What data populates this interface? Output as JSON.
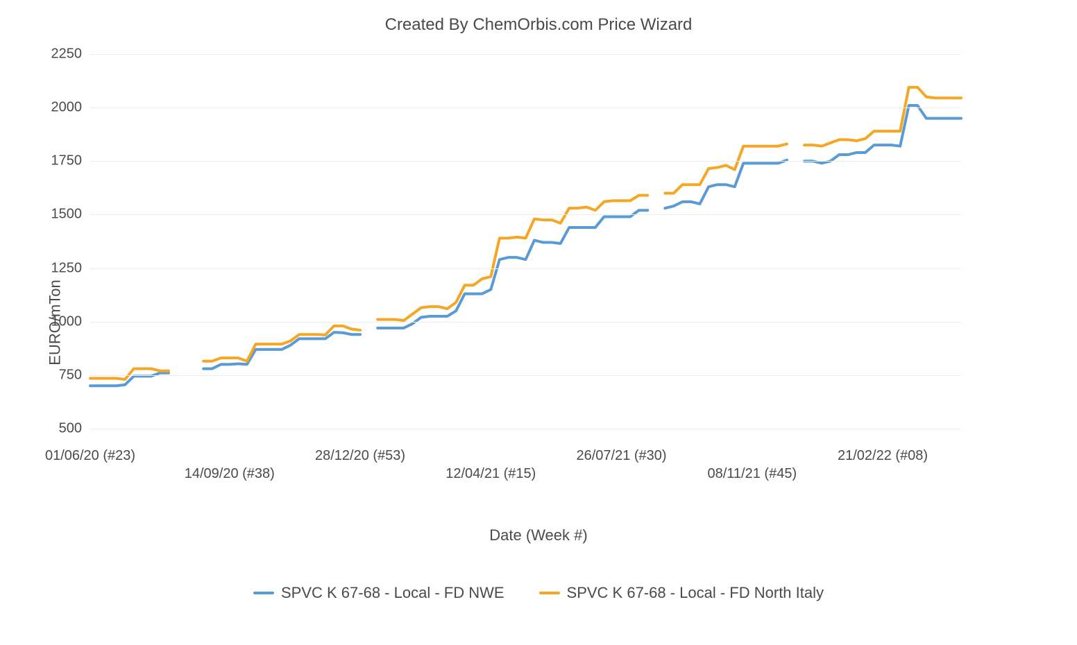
{
  "chart": {
    "type": "line",
    "title": "Created By ChemOrbis.com Price Wizard",
    "title_fontsize": 24,
    "title_color": "#4a4a4a",
    "background_color": "#ffffff",
    "grid_color": "#ececec",
    "text_color": "#4a4a4a",
    "line_width": 4,
    "y_axis": {
      "label": "EURO/mTon",
      "label_fontsize": 22,
      "min": 500,
      "max": 2250,
      "tick_step": 250,
      "ticks": [
        500,
        750,
        1000,
        1250,
        1500,
        1750,
        2000,
        2250
      ]
    },
    "x_axis": {
      "label": "Date (Week #)",
      "label_fontsize": 22,
      "min": 0,
      "max": 100,
      "ticks": [
        {
          "pos": 0,
          "label": "01/06/20 (#23)",
          "row": 1
        },
        {
          "pos": 16,
          "label": "14/09/20 (#38)",
          "row": 2
        },
        {
          "pos": 31,
          "label": "28/12/20 (#53)",
          "row": 1
        },
        {
          "pos": 46,
          "label": "12/04/21 (#15)",
          "row": 2
        },
        {
          "pos": 61,
          "label": "26/07/21 (#30)",
          "row": 1
        },
        {
          "pos": 76,
          "label": "08/11/21 (#45)",
          "row": 2
        },
        {
          "pos": 91,
          "label": "21/02/22 (#08)",
          "row": 1
        }
      ]
    },
    "series": [
      {
        "name": "SPVC K 67-68 - Local - FD NWE",
        "color": "#5b9bd5",
        "segments": [
          [
            [
              0,
              700
            ],
            [
              2,
              700
            ],
            [
              3,
              700
            ],
            [
              4,
              705
            ],
            [
              5,
              745
            ],
            [
              6,
              745
            ],
            [
              7,
              745
            ],
            [
              8,
              760
            ],
            [
              9,
              760
            ]
          ],
          [
            [
              13,
              780
            ],
            [
              14,
              780
            ],
            [
              15,
              800
            ],
            [
              16,
              800
            ],
            [
              17,
              803
            ],
            [
              18,
              800
            ],
            [
              19,
              870
            ],
            [
              20,
              870
            ],
            [
              21,
              870
            ],
            [
              22,
              870
            ],
            [
              23,
              890
            ],
            [
              24,
              920
            ],
            [
              25,
              920
            ],
            [
              26,
              920
            ],
            [
              27,
              920
            ],
            [
              28,
              950
            ],
            [
              29,
              948
            ],
            [
              30,
              940
            ],
            [
              31,
              940
            ]
          ],
          [
            [
              33,
              970
            ],
            [
              34,
              970
            ],
            [
              35,
              970
            ],
            [
              36,
              970
            ],
            [
              37,
              990
            ],
            [
              38,
              1020
            ],
            [
              39,
              1025
            ],
            [
              40,
              1025
            ],
            [
              41,
              1025
            ],
            [
              42,
              1050
            ],
            [
              43,
              1130
            ],
            [
              44,
              1130
            ],
            [
              45,
              1130
            ],
            [
              46,
              1150
            ],
            [
              47,
              1290
            ],
            [
              48,
              1300
            ],
            [
              49,
              1300
            ],
            [
              50,
              1290
            ],
            [
              51,
              1380
            ],
            [
              52,
              1370
            ],
            [
              53,
              1370
            ],
            [
              54,
              1365
            ],
            [
              55,
              1440
            ],
            [
              56,
              1440
            ],
            [
              57,
              1440
            ],
            [
              58,
              1440
            ],
            [
              59,
              1490
            ],
            [
              60,
              1490
            ],
            [
              61,
              1490
            ],
            [
              62,
              1490
            ],
            [
              63,
              1520
            ],
            [
              64,
              1520
            ]
          ],
          [
            [
              66,
              1530
            ],
            [
              67,
              1540
            ],
            [
              68,
              1560
            ],
            [
              69,
              1560
            ],
            [
              70,
              1550
            ],
            [
              71,
              1630
            ],
            [
              72,
              1640
            ],
            [
              73,
              1640
            ],
            [
              74,
              1630
            ],
            [
              75,
              1740
            ],
            [
              76,
              1740
            ],
            [
              77,
              1740
            ],
            [
              78,
              1740
            ],
            [
              79,
              1740
            ],
            [
              80,
              1755
            ]
          ],
          [
            [
              82,
              1750
            ],
            [
              83,
              1750
            ],
            [
              84,
              1740
            ],
            [
              85,
              1750
            ],
            [
              86,
              1780
            ],
            [
              87,
              1780
            ],
            [
              88,
              1790
            ],
            [
              89,
              1790
            ],
            [
              90,
              1825
            ],
            [
              91,
              1825
            ],
            [
              92,
              1825
            ],
            [
              93,
              1820
            ],
            [
              94,
              2010
            ],
            [
              95,
              2010
            ],
            [
              96,
              1950
            ],
            [
              97,
              1950
            ],
            [
              98,
              1950
            ],
            [
              99,
              1950
            ],
            [
              100,
              1950
            ]
          ]
        ]
      },
      {
        "name": "SPVC K 67-68 - Local - FD North Italy",
        "color": "#f5a623",
        "segments": [
          [
            [
              0,
              735
            ],
            [
              2,
              735
            ],
            [
              3,
              735
            ],
            [
              4,
              730
            ],
            [
              5,
              780
            ],
            [
              6,
              780
            ],
            [
              7,
              780
            ],
            [
              8,
              770
            ],
            [
              9,
              770
            ]
          ],
          [
            [
              13,
              815
            ],
            [
              14,
              815
            ],
            [
              15,
              830
            ],
            [
              16,
              830
            ],
            [
              17,
              830
            ],
            [
              18,
              815
            ],
            [
              19,
              895
            ],
            [
              20,
              895
            ],
            [
              21,
              895
            ],
            [
              22,
              895
            ],
            [
              23,
              910
            ],
            [
              24,
              940
            ],
            [
              25,
              940
            ],
            [
              26,
              940
            ],
            [
              27,
              938
            ],
            [
              28,
              980
            ],
            [
              29,
              980
            ],
            [
              30,
              965
            ],
            [
              31,
              960
            ]
          ],
          [
            [
              33,
              1010
            ],
            [
              34,
              1010
            ],
            [
              35,
              1010
            ],
            [
              36,
              1005
            ],
            [
              37,
              1035
            ],
            [
              38,
              1065
            ],
            [
              39,
              1070
            ],
            [
              40,
              1070
            ],
            [
              41,
              1060
            ],
            [
              42,
              1090
            ],
            [
              43,
              1170
            ],
            [
              44,
              1170
            ],
            [
              45,
              1200
            ],
            [
              46,
              1210
            ],
            [
              47,
              1390
            ],
            [
              48,
              1390
            ],
            [
              49,
              1395
            ],
            [
              50,
              1390
            ],
            [
              51,
              1480
            ],
            [
              52,
              1475
            ],
            [
              53,
              1475
            ],
            [
              54,
              1460
            ],
            [
              55,
              1530
            ],
            [
              56,
              1530
            ],
            [
              57,
              1535
            ],
            [
              58,
              1520
            ],
            [
              59,
              1560
            ],
            [
              60,
              1565
            ],
            [
              61,
              1565
            ],
            [
              62,
              1565
            ],
            [
              63,
              1590
            ],
            [
              64,
              1590
            ]
          ],
          [
            [
              66,
              1600
            ],
            [
              67,
              1600
            ],
            [
              68,
              1640
            ],
            [
              69,
              1640
            ],
            [
              70,
              1640
            ],
            [
              71,
              1715
            ],
            [
              72,
              1720
            ],
            [
              73,
              1730
            ],
            [
              74,
              1710
            ],
            [
              75,
              1820
            ],
            [
              76,
              1820
            ],
            [
              77,
              1820
            ],
            [
              78,
              1820
            ],
            [
              79,
              1820
            ],
            [
              80,
              1830
            ]
          ],
          [
            [
              82,
              1825
            ],
            [
              83,
              1825
            ],
            [
              84,
              1820
            ],
            [
              85,
              1835
            ],
            [
              86,
              1850
            ],
            [
              87,
              1850
            ],
            [
              88,
              1845
            ],
            [
              89,
              1855
            ],
            [
              90,
              1890
            ],
            [
              91,
              1890
            ],
            [
              92,
              1890
            ],
            [
              93,
              1890
            ],
            [
              94,
              2095
            ],
            [
              95,
              2095
            ],
            [
              96,
              2050
            ],
            [
              97,
              2045
            ],
            [
              98,
              2045
            ],
            [
              99,
              2045
            ],
            [
              100,
              2045
            ]
          ]
        ]
      }
    ],
    "legend": {
      "position": "bottom",
      "fontsize": 22
    }
  }
}
